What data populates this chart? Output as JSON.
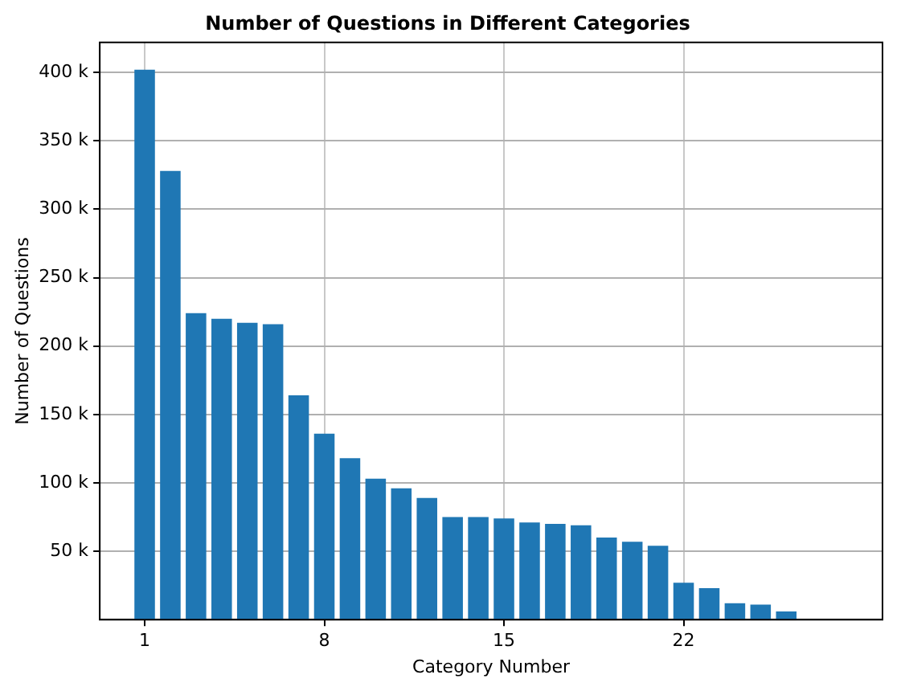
{
  "chart_data": {
    "type": "bar",
    "title": "Number of Questions in Different Categories",
    "xlabel": "Category Number",
    "ylabel": "Number of Questions",
    "x": [
      1,
      2,
      3,
      4,
      5,
      6,
      7,
      8,
      9,
      10,
      11,
      12,
      13,
      14,
      15,
      16,
      17,
      18,
      19,
      20,
      21,
      22,
      23,
      24,
      25,
      26
    ],
    "values": [
      402000,
      328000,
      224000,
      220000,
      217000,
      216000,
      164000,
      136000,
      118000,
      103000,
      96000,
      89000,
      75000,
      75000,
      74000,
      71000,
      70000,
      69000,
      60000,
      57000,
      54000,
      27000,
      23000,
      12000,
      11000,
      6000
    ],
    "color": "#1f77b4",
    "xlim": [
      -0.75,
      29.75
    ],
    "xticks": [
      1,
      8,
      15,
      22
    ],
    "ylim": [
      0,
      422000
    ],
    "yticks": [
      {
        "value": 50000,
        "label": "50 k"
      },
      {
        "value": 100000,
        "label": "100 k"
      },
      {
        "value": 150000,
        "label": "150 k"
      },
      {
        "value": 200000,
        "label": "200 k"
      },
      {
        "value": 250000,
        "label": "250 k"
      },
      {
        "value": 300000,
        "label": "300 k"
      },
      {
        "value": 350000,
        "label": "350 k"
      },
      {
        "value": 400000,
        "label": "400 k"
      }
    ],
    "grid": true
  }
}
